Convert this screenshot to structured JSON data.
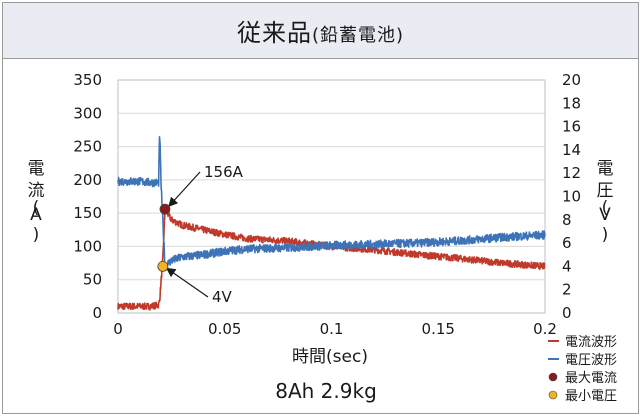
{
  "title": {
    "main": "従来品",
    "sub": "(鉛蓄電池)"
  },
  "chart_data": {
    "type": "line",
    "xlabel": "時間(sec)",
    "ylabel_left": [
      "電",
      "流",
      "(",
      "A",
      ")"
    ],
    "ylabel_right": [
      "電",
      "圧",
      "(",
      "V",
      ")"
    ],
    "xlim": [
      0,
      0.2
    ],
    "ylim_left": [
      0,
      350
    ],
    "ylim_right": [
      0,
      20
    ],
    "x_ticks": [
      "0",
      "0.05",
      "0.1",
      "0.15",
      "0.2"
    ],
    "y_left_ticks": [
      "0",
      "50",
      "100",
      "150",
      "200",
      "250",
      "300",
      "350"
    ],
    "y_right_ticks": [
      "0",
      "2",
      "4",
      "6",
      "8",
      "10",
      "12",
      "14",
      "16",
      "18",
      "20"
    ],
    "grid": true,
    "legend_position": "bottom-right",
    "series": [
      {
        "name": "電流波形",
        "axis": "left",
        "color": "#c0392b",
        "x": [
          0,
          0.005,
          0.01,
          0.015,
          0.019,
          0.0195,
          0.021,
          0.022,
          0.025,
          0.03,
          0.04,
          0.05,
          0.06,
          0.08,
          0.1,
          0.12,
          0.14,
          0.16,
          0.18,
          0.2
        ],
        "y": [
          10,
          10,
          10,
          10,
          12,
          20,
          80,
          156,
          140,
          132,
          125,
          118,
          112,
          108,
          100,
          95,
          88,
          82,
          75,
          70
        ]
      },
      {
        "name": "電圧波形",
        "axis": "right",
        "color": "#3e73b8",
        "x": [
          0,
          0.005,
          0.01,
          0.015,
          0.019,
          0.0195,
          0.0202,
          0.021,
          0.022,
          0.025,
          0.03,
          0.04,
          0.05,
          0.06,
          0.08,
          0.1,
          0.12,
          0.14,
          0.16,
          0.18,
          0.2
        ],
        "y": [
          11.3,
          11.3,
          11.3,
          11.2,
          11.2,
          15.5,
          11.0,
          8.0,
          4.0,
          4.5,
          4.8,
          5.0,
          5.3,
          5.5,
          5.6,
          5.8,
          5.9,
          6.0,
          6.2,
          6.5,
          6.7
        ]
      }
    ],
    "annotations": [
      {
        "label": "156A",
        "x": 0.022,
        "value": 156,
        "axis": "left",
        "color": "#8b1a1a",
        "name": "最大電流"
      },
      {
        "label": "4V",
        "x": 0.021,
        "value": 4,
        "axis": "right",
        "color": "#f2b320",
        "name": "最小電圧"
      }
    ],
    "legend": [
      {
        "label": "電流波形",
        "kind": "line",
        "color": "#c0392b"
      },
      {
        "label": "電圧波形",
        "kind": "line",
        "color": "#3e73b8"
      },
      {
        "label": "最大電流",
        "kind": "dot",
        "color": "#8b1a1a"
      },
      {
        "label": "最小電圧",
        "kind": "dot",
        "color": "#f2b320"
      }
    ],
    "subtitle": "8Ah 2.9kg"
  }
}
